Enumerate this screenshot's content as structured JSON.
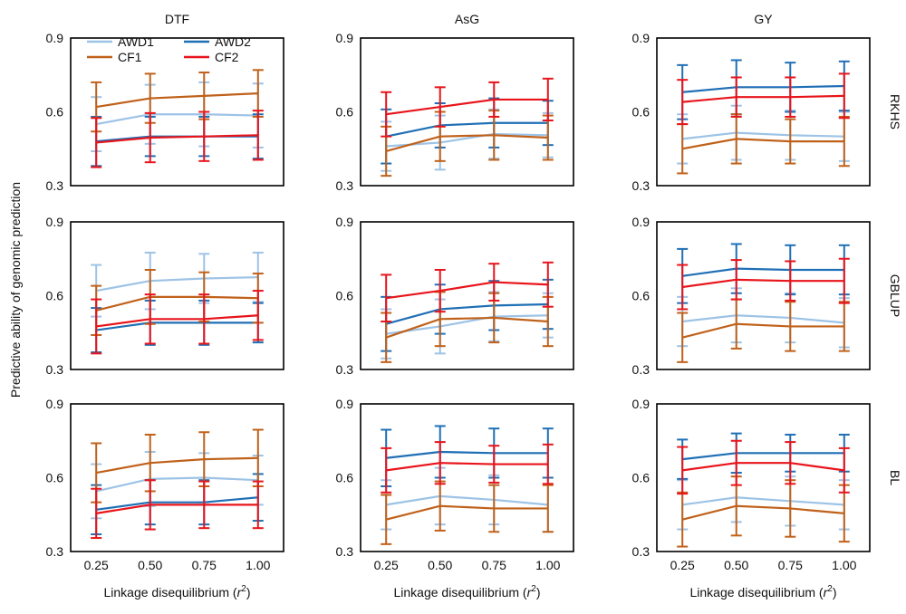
{
  "figure": {
    "ylabel": "Predictive ability of genomic prediction",
    "xlabel_main": "Linkage disequilibrium (",
    "xlabel_var": "r",
    "xlabel_sup": "2",
    "xlabel_end": ")",
    "col_titles": [
      "DTF",
      "AsG",
      "GY"
    ],
    "row_labels": [
      "RKHS",
      "GBLUP",
      "BL"
    ],
    "x_ticks": [
      "0.25",
      "0.50",
      "0.75",
      "1.00"
    ],
    "y_ticks": [
      "0.3",
      "0.6",
      "0.9"
    ],
    "legend": [
      {
        "name": "AWD1",
        "color": "#9DC3E6"
      },
      {
        "name": "AWD2",
        "color": "#1F6FB5"
      },
      {
        "name": "CF1",
        "color": "#C0611A"
      },
      {
        "name": "CF2",
        "color": "#E8141B"
      }
    ]
  },
  "chart_data": [
    {
      "type": "line",
      "title": "DTF",
      "row": "RKHS",
      "x": [
        0.25,
        0.5,
        0.75,
        1.0
      ],
      "ylim": [
        0.3,
        0.9
      ],
      "series": [
        {
          "name": "AWD1",
          "color": "#9DC3E6",
          "values": [
            0.55,
            0.59,
            0.59,
            0.585
          ],
          "err": [
            0.11,
            0.12,
            0.13,
            0.13
          ]
        },
        {
          "name": "AWD2",
          "color": "#1F6FB5",
          "values": [
            0.48,
            0.5,
            0.5,
            0.5
          ],
          "err": [
            0.1,
            0.08,
            0.08,
            0.09
          ]
        },
        {
          "name": "CF1",
          "color": "#C0611A",
          "values": [
            0.62,
            0.655,
            0.665,
            0.675
          ],
          "err": [
            0.1,
            0.1,
            0.095,
            0.095
          ]
        },
        {
          "name": "CF2",
          "color": "#E8141B",
          "values": [
            0.475,
            0.495,
            0.5,
            0.505
          ],
          "err": [
            0.1,
            0.1,
            0.1,
            0.1
          ]
        }
      ]
    },
    {
      "type": "line",
      "title": "AsG",
      "row": "RKHS",
      "x": [
        0.25,
        0.5,
        0.75,
        1.0
      ],
      "ylim": [
        0.3,
        0.9
      ],
      "series": [
        {
          "name": "AWD1",
          "color": "#9DC3E6",
          "values": [
            0.46,
            0.475,
            0.51,
            0.505
          ],
          "err": [
            0.1,
            0.11,
            0.1,
            0.09
          ]
        },
        {
          "name": "AWD2",
          "color": "#1F6FB5",
          "values": [
            0.5,
            0.545,
            0.555,
            0.555
          ],
          "err": [
            0.11,
            0.09,
            0.1,
            0.09
          ]
        },
        {
          "name": "CF1",
          "color": "#C0611A",
          "values": [
            0.44,
            0.5,
            0.505,
            0.495
          ],
          "err": [
            0.1,
            0.1,
            0.1,
            0.09
          ]
        },
        {
          "name": "CF2",
          "color": "#E8141B",
          "values": [
            0.59,
            0.62,
            0.65,
            0.65
          ],
          "err": [
            0.09,
            0.08,
            0.07,
            0.085
          ]
        }
      ]
    },
    {
      "type": "line",
      "title": "GY",
      "row": "RKHS",
      "x": [
        0.25,
        0.5,
        0.75,
        1.0
      ],
      "ylim": [
        0.3,
        0.9
      ],
      "series": [
        {
          "name": "AWD1",
          "color": "#9DC3E6",
          "values": [
            0.49,
            0.515,
            0.505,
            0.5
          ],
          "err": [
            0.1,
            0.11,
            0.1,
            0.1
          ]
        },
        {
          "name": "AWD2",
          "color": "#1F6FB5",
          "values": [
            0.68,
            0.7,
            0.7,
            0.705
          ],
          "err": [
            0.11,
            0.11,
            0.1,
            0.1
          ]
        },
        {
          "name": "CF1",
          "color": "#C0611A",
          "values": [
            0.45,
            0.49,
            0.48,
            0.48
          ],
          "err": [
            0.1,
            0.1,
            0.09,
            0.1
          ]
        },
        {
          "name": "CF2",
          "color": "#E8141B",
          "values": [
            0.64,
            0.66,
            0.66,
            0.665
          ],
          "err": [
            0.09,
            0.08,
            0.08,
            0.09
          ]
        }
      ]
    },
    {
      "type": "line",
      "title": "DTF",
      "row": "GBLUP",
      "x": [
        0.25,
        0.5,
        0.75,
        1.0
      ],
      "ylim": [
        0.3,
        0.9
      ],
      "series": [
        {
          "name": "AWD1",
          "color": "#9DC3E6",
          "values": [
            0.62,
            0.66,
            0.67,
            0.675
          ],
          "err": [
            0.105,
            0.115,
            0.1,
            0.1
          ]
        },
        {
          "name": "AWD2",
          "color": "#1F6FB5",
          "values": [
            0.46,
            0.49,
            0.49,
            0.49
          ],
          "err": [
            0.09,
            0.09,
            0.09,
            0.08
          ]
        },
        {
          "name": "CF1",
          "color": "#C0611A",
          "values": [
            0.54,
            0.595,
            0.595,
            0.59
          ],
          "err": [
            0.1,
            0.11,
            0.1,
            0.1
          ]
        },
        {
          "name": "CF2",
          "color": "#E8141B",
          "values": [
            0.475,
            0.505,
            0.505,
            0.52
          ],
          "err": [
            0.11,
            0.1,
            0.1,
            0.1
          ]
        }
      ]
    },
    {
      "type": "line",
      "title": "AsG",
      "row": "GBLUP",
      "x": [
        0.25,
        0.5,
        0.75,
        1.0
      ],
      "ylim": [
        0.3,
        0.9
      ],
      "series": [
        {
          "name": "AWD1",
          "color": "#9DC3E6",
          "values": [
            0.445,
            0.475,
            0.515,
            0.52
          ],
          "err": [
            0.1,
            0.11,
            0.1,
            0.09
          ]
        },
        {
          "name": "AWD2",
          "color": "#1F6FB5",
          "values": [
            0.485,
            0.545,
            0.56,
            0.565
          ],
          "err": [
            0.11,
            0.1,
            0.1,
            0.1
          ]
        },
        {
          "name": "CF1",
          "color": "#C0611A",
          "values": [
            0.43,
            0.505,
            0.51,
            0.495
          ],
          "err": [
            0.1,
            0.11,
            0.1,
            0.1
          ]
        },
        {
          "name": "CF2",
          "color": "#E8141B",
          "values": [
            0.59,
            0.62,
            0.655,
            0.645
          ],
          "err": [
            0.095,
            0.085,
            0.075,
            0.09
          ]
        }
      ]
    },
    {
      "type": "line",
      "title": "GY",
      "row": "GBLUP",
      "x": [
        0.25,
        0.5,
        0.75,
        1.0
      ],
      "ylim": [
        0.3,
        0.9
      ],
      "series": [
        {
          "name": "AWD1",
          "color": "#9DC3E6",
          "values": [
            0.495,
            0.52,
            0.51,
            0.49
          ],
          "err": [
            0.1,
            0.11,
            0.1,
            0.1
          ]
        },
        {
          "name": "AWD2",
          "color": "#1F6FB5",
          "values": [
            0.68,
            0.71,
            0.705,
            0.705
          ],
          "err": [
            0.11,
            0.1,
            0.1,
            0.1
          ]
        },
        {
          "name": "CF1",
          "color": "#C0611A",
          "values": [
            0.43,
            0.485,
            0.475,
            0.475
          ],
          "err": [
            0.1,
            0.1,
            0.1,
            0.1
          ]
        },
        {
          "name": "CF2",
          "color": "#E8141B",
          "values": [
            0.635,
            0.665,
            0.66,
            0.66
          ],
          "err": [
            0.09,
            0.08,
            0.08,
            0.09
          ]
        }
      ]
    },
    {
      "type": "line",
      "title": "DTF",
      "row": "BL",
      "x": [
        0.25,
        0.5,
        0.75,
        1.0
      ],
      "ylim": [
        0.3,
        0.9
      ],
      "series": [
        {
          "name": "AWD1",
          "color": "#9DC3E6",
          "values": [
            0.545,
            0.595,
            0.6,
            0.59
          ],
          "err": [
            0.11,
            0.11,
            0.1,
            0.1
          ]
        },
        {
          "name": "AWD2",
          "color": "#1F6FB5",
          "values": [
            0.47,
            0.5,
            0.5,
            0.52
          ],
          "err": [
            0.1,
            0.09,
            0.09,
            0.095
          ]
        },
        {
          "name": "CF1",
          "color": "#C0611A",
          "values": [
            0.62,
            0.66,
            0.675,
            0.68
          ],
          "err": [
            0.12,
            0.115,
            0.11,
            0.115
          ]
        },
        {
          "name": "CF2",
          "color": "#E8141B",
          "values": [
            0.455,
            0.49,
            0.49,
            0.49
          ],
          "err": [
            0.1,
            0.1,
            0.095,
            0.095
          ]
        }
      ]
    },
    {
      "type": "line",
      "title": "AsG",
      "row": "BL",
      "x": [
        0.25,
        0.5,
        0.75,
        1.0
      ],
      "ylim": [
        0.3,
        0.9
      ],
      "series": [
        {
          "name": "AWD1",
          "color": "#9DC3E6",
          "values": [
            0.49,
            0.525,
            0.51,
            0.49
          ],
          "err": [
            0.1,
            0.115,
            0.1,
            0.11
          ]
        },
        {
          "name": "AWD2",
          "color": "#1F6FB5",
          "values": [
            0.68,
            0.705,
            0.7,
            0.7
          ],
          "err": [
            0.115,
            0.105,
            0.1,
            0.1
          ]
        },
        {
          "name": "CF1",
          "color": "#C0611A",
          "values": [
            0.43,
            0.485,
            0.475,
            0.475
          ],
          "err": [
            0.1,
            0.1,
            0.095,
            0.095
          ]
        },
        {
          "name": "CF2",
          "color": "#E8141B",
          "values": [
            0.63,
            0.66,
            0.655,
            0.655
          ],
          "err": [
            0.09,
            0.085,
            0.075,
            0.08
          ]
        }
      ]
    },
    {
      "type": "line",
      "title": "GY",
      "row": "BL",
      "x": [
        0.25,
        0.5,
        0.75,
        1.0
      ],
      "ylim": [
        0.3,
        0.9
      ],
      "series": [
        {
          "name": "AWD1",
          "color": "#9DC3E6",
          "values": [
            0.49,
            0.52,
            0.505,
            0.49
          ],
          "err": [
            0.1,
            0.1,
            0.1,
            0.1
          ]
        },
        {
          "name": "AWD2",
          "color": "#1F6FB5",
          "values": [
            0.675,
            0.7,
            0.7,
            0.7
          ],
          "err": [
            0.08,
            0.08,
            0.075,
            0.075
          ]
        },
        {
          "name": "CF1",
          "color": "#C0611A",
          "values": [
            0.43,
            0.485,
            0.475,
            0.455
          ],
          "err": [
            0.11,
            0.12,
            0.115,
            0.115
          ]
        },
        {
          "name": "CF2",
          "color": "#E8141B",
          "values": [
            0.63,
            0.66,
            0.66,
            0.63
          ],
          "err": [
            0.095,
            0.09,
            0.085,
            0.09
          ]
        }
      ]
    }
  ]
}
